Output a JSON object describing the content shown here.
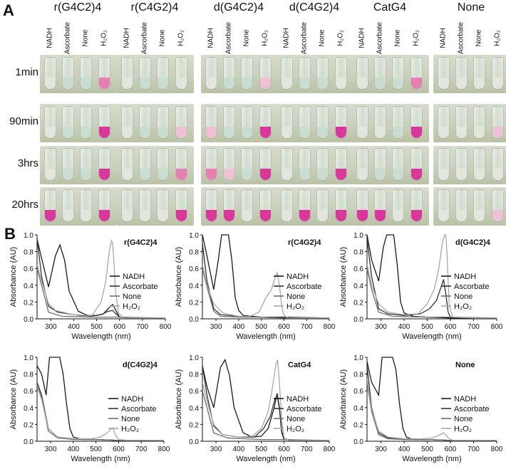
{
  "figure": {
    "panel_a_letter": "A",
    "panel_b_letter": "B",
    "groups": [
      "r(G4C2)4",
      "r(C4G2)4",
      "d(G4C2)4",
      "d(C4G2)4",
      "CatG4",
      "None"
    ],
    "tube_conditions": [
      "NADH",
      "Ascorbate",
      "None",
      "H2O2"
    ],
    "timepoints": [
      "1min",
      "90min",
      "3hrs",
      "20hrs"
    ],
    "tube_colors": {
      "clear": "#e3e6dc",
      "green": "#c9ddd0",
      "pale_pink": "#efc1d4",
      "pink": "#e77fb2",
      "magenta": "#d9379a"
    },
    "tube_states": [
      [
        [
          "clear",
          "green",
          "green",
          "pink"
        ],
        [
          "clear",
          "green",
          "green",
          "magenta"
        ],
        [
          "clear",
          "green",
          "green",
          "magenta"
        ],
        [
          "magenta",
          "clear",
          "clear",
          "magenta"
        ]
      ],
      [
        [
          "clear",
          "green",
          "green",
          "clear"
        ],
        [
          "clear",
          "green",
          "green",
          "pale_pink"
        ],
        [
          "clear",
          "green",
          "green",
          "pink"
        ],
        [
          "clear",
          "clear",
          "clear",
          "magenta"
        ]
      ],
      [
        [
          "clear",
          "green",
          "green",
          "pale_pink"
        ],
        [
          "pale_pink",
          "green",
          "green",
          "magenta"
        ],
        [
          "pink",
          "pale_pink",
          "green",
          "magenta"
        ],
        [
          "magenta",
          "magenta",
          "clear",
          "magenta"
        ]
      ],
      [
        [
          "clear",
          "green",
          "green",
          "clear"
        ],
        [
          "clear",
          "green",
          "green",
          "magenta"
        ],
        [
          "clear",
          "green",
          "green",
          "magenta"
        ],
        [
          "clear",
          "magenta",
          "clear",
          "magenta"
        ]
      ],
      [
        [
          "clear",
          "green",
          "green",
          "pink"
        ],
        [
          "clear",
          "clear",
          "green",
          "magenta"
        ],
        [
          "clear",
          "green",
          "green",
          "magenta"
        ],
        [
          "magenta",
          "magenta",
          "clear",
          "magenta"
        ]
      ],
      [
        [
          "clear",
          "clear",
          "clear",
          "clear"
        ],
        [
          "clear",
          "clear",
          "clear",
          "pale_pink"
        ],
        [
          "clear",
          "clear",
          "clear",
          "clear"
        ],
        [
          "clear",
          "clear",
          "clear",
          "pale_pink"
        ]
      ]
    ],
    "legend": [
      "NADH",
      "Ascorbate",
      "None",
      "H₂O₂"
    ],
    "series_colors": [
      "#1a1a1a",
      "#333333",
      "#6e6e6e",
      "#a8a8a8"
    ],
    "xlabel": "Wavelength (nm)",
    "ylabel": "Absorbance (AU)",
    "xticks": [
      "300",
      "400",
      "500",
      "600",
      "700",
      "800"
    ],
    "yticks": [
      "0.0",
      "0.2",
      "0.4",
      "0.6",
      "0.8",
      "1.0"
    ]
  },
  "chart_data": [
    {
      "type": "line",
      "title": "r(G4C2)4",
      "xlim": [
        240,
        800
      ],
      "ylim": [
        0,
        1.0
      ],
      "series": [
        {
          "name": "NADH",
          "x": [
            240,
            260,
            290,
            320,
            340,
            360,
            380,
            420,
            460,
            500,
            530,
            560,
            570,
            580,
            600,
            650,
            700,
            800
          ],
          "y": [
            0.95,
            0.72,
            0.38,
            0.75,
            0.88,
            0.7,
            0.33,
            0.09,
            0.04,
            0.04,
            0.06,
            0.15,
            0.17,
            0.12,
            0.02,
            0.01,
            0.01,
            0.01
          ]
        },
        {
          "name": "Ascorbate",
          "x": [
            240,
            260,
            290,
            330,
            400,
            470,
            520,
            550,
            570,
            580,
            600,
            700,
            800
          ],
          "y": [
            0.96,
            0.5,
            0.15,
            0.08,
            0.05,
            0.03,
            0.05,
            0.09,
            0.1,
            0.07,
            0.02,
            0.01,
            0.01
          ]
        },
        {
          "name": "None",
          "x": [
            240,
            260,
            290,
            350,
            500,
            600,
            800
          ],
          "y": [
            0.6,
            0.4,
            0.08,
            0.03,
            0.02,
            0.02,
            0.01
          ]
        },
        {
          "name": "H2O2",
          "x": [
            240,
            260,
            290,
            320,
            380,
            440,
            480,
            520,
            540,
            555,
            565,
            570,
            575,
            582,
            595,
            620,
            700,
            800
          ],
          "y": [
            0.65,
            0.45,
            0.18,
            0.1,
            0.06,
            0.03,
            0.04,
            0.2,
            0.45,
            0.8,
            0.93,
            0.9,
            0.7,
            0.35,
            0.07,
            0.01,
            0.01,
            0.01
          ]
        }
      ]
    },
    {
      "type": "line",
      "title": "r(C4G2)4",
      "xlim": [
        240,
        800
      ],
      "ylim": [
        0,
        1.0
      ],
      "series": [
        {
          "name": "NADH",
          "x": [
            240,
            260,
            290,
            310,
            325,
            340,
            355,
            370,
            385,
            400,
            420,
            500,
            600,
            800
          ],
          "y": [
            1.0,
            0.75,
            0.35,
            0.7,
            1.0,
            1.0,
            1.0,
            0.7,
            0.25,
            0.1,
            0.04,
            0.02,
            0.02,
            0.01
          ]
        },
        {
          "name": "Ascorbate",
          "x": [
            240,
            260,
            290,
            320,
            400,
            500,
            600,
            800
          ],
          "y": [
            0.9,
            0.45,
            0.12,
            0.05,
            0.03,
            0.02,
            0.01,
            0.01
          ]
        },
        {
          "name": "None",
          "x": [
            240,
            260,
            290,
            320,
            400,
            500,
            600,
            800
          ],
          "y": [
            0.6,
            0.38,
            0.09,
            0.03,
            0.02,
            0.02,
            0.01,
            0.01
          ]
        },
        {
          "name": "H2O2",
          "x": [
            240,
            260,
            290,
            330,
            400,
            450,
            490,
            520,
            545,
            560,
            570,
            580,
            590,
            600,
            620,
            800
          ],
          "y": [
            0.65,
            0.4,
            0.18,
            0.07,
            0.03,
            0.03,
            0.08,
            0.25,
            0.35,
            0.48,
            0.55,
            0.4,
            0.15,
            0.04,
            0.01,
            0.01
          ]
        }
      ]
    },
    {
      "type": "line",
      "title": "d(G4C2)4",
      "xlim": [
        240,
        800
      ],
      "ylim": [
        0,
        1.0
      ],
      "series": [
        {
          "name": "NADH",
          "x": [
            240,
            260,
            290,
            310,
            325,
            340,
            355,
            370,
            385,
            400,
            440,
            500,
            600,
            800
          ],
          "y": [
            1.0,
            0.7,
            0.45,
            0.85,
            1.0,
            1.0,
            1.0,
            0.65,
            0.2,
            0.07,
            0.03,
            0.02,
            0.01,
            0.01
          ]
        },
        {
          "name": "Ascorbate",
          "x": [
            240,
            260,
            290,
            330,
            400,
            470,
            510,
            540,
            560,
            570,
            580,
            590,
            600,
            700,
            800
          ],
          "y": [
            0.95,
            0.5,
            0.12,
            0.06,
            0.04,
            0.06,
            0.12,
            0.22,
            0.38,
            0.47,
            0.3,
            0.08,
            0.02,
            0.01,
            0.01
          ]
        },
        {
          "name": "None",
          "x": [
            240,
            260,
            290,
            350,
            500,
            600,
            800
          ],
          "y": [
            0.6,
            0.35,
            0.08,
            0.03,
            0.02,
            0.02,
            0.01
          ]
        },
        {
          "name": "H2O2",
          "x": [
            240,
            260,
            290,
            330,
            400,
            460,
            500,
            530,
            550,
            565,
            575,
            580,
            585,
            595,
            610,
            700,
            800
          ],
          "y": [
            0.65,
            0.4,
            0.18,
            0.08,
            0.05,
            0.06,
            0.18,
            0.35,
            0.6,
            0.9,
            1.0,
            1.0,
            0.8,
            0.15,
            0.02,
            0.01,
            0.01
          ]
        }
      ]
    },
    {
      "type": "line",
      "title": "d(C4G2)4",
      "xlim": [
        240,
        800
      ],
      "ylim": [
        0,
        1.0
      ],
      "series": [
        {
          "name": "NADH",
          "x": [
            240,
            260,
            280,
            295,
            310,
            325,
            340,
            355,
            370,
            385,
            400,
            440,
            500,
            600,
            800
          ],
          "y": [
            0.9,
            0.8,
            0.55,
            1.0,
            1.0,
            1.0,
            1.0,
            0.8,
            0.45,
            0.15,
            0.05,
            0.02,
            0.02,
            0.01,
            0.01
          ]
        },
        {
          "name": "Ascorbate",
          "x": [
            240,
            260,
            290,
            330,
            400,
            500,
            600,
            800
          ],
          "y": [
            0.7,
            0.55,
            0.15,
            0.05,
            0.03,
            0.02,
            0.01,
            0.01
          ]
        },
        {
          "name": "None",
          "x": [
            240,
            260,
            290,
            330,
            400,
            500,
            600,
            800
          ],
          "y": [
            0.68,
            0.52,
            0.12,
            0.04,
            0.02,
            0.02,
            0.01,
            0.01
          ]
        },
        {
          "name": "H2O2",
          "x": [
            240,
            260,
            290,
            330,
            400,
            480,
            520,
            550,
            565,
            575,
            585,
            600,
            650,
            800
          ],
          "y": [
            0.65,
            0.5,
            0.15,
            0.05,
            0.03,
            0.03,
            0.05,
            0.1,
            0.14,
            0.16,
            0.08,
            0.02,
            0.01,
            0.01
          ]
        }
      ]
    },
    {
      "type": "line",
      "title": "CatG4",
      "xlim": [
        240,
        800
      ],
      "ylim": [
        0,
        1.0
      ],
      "series": [
        {
          "name": "NADH",
          "x": [
            240,
            260,
            290,
            320,
            340,
            360,
            380,
            420,
            460,
            500,
            530,
            555,
            570,
            580,
            590,
            600,
            700,
            800
          ],
          "y": [
            0.9,
            0.65,
            0.4,
            0.88,
            0.97,
            0.78,
            0.4,
            0.1,
            0.05,
            0.06,
            0.15,
            0.38,
            0.57,
            0.4,
            0.12,
            0.02,
            0.01,
            0.01
          ]
        },
        {
          "name": "Ascorbate",
          "x": [
            240,
            260,
            290,
            330,
            400,
            470,
            510,
            540,
            560,
            570,
            580,
            590,
            600,
            700,
            800
          ],
          "y": [
            0.9,
            0.55,
            0.18,
            0.08,
            0.05,
            0.05,
            0.15,
            0.3,
            0.5,
            0.55,
            0.38,
            0.1,
            0.02,
            0.01,
            0.01
          ]
        },
        {
          "name": "None",
          "x": [
            240,
            260,
            290,
            350,
            500,
            600,
            800
          ],
          "y": [
            0.6,
            0.4,
            0.1,
            0.04,
            0.02,
            0.02,
            0.01
          ]
        },
        {
          "name": "H2O2",
          "x": [
            240,
            260,
            290,
            330,
            400,
            460,
            500,
            530,
            550,
            565,
            572,
            580,
            590,
            600,
            620,
            800
          ],
          "y": [
            0.7,
            0.48,
            0.2,
            0.08,
            0.05,
            0.06,
            0.15,
            0.35,
            0.65,
            0.92,
            0.97,
            0.7,
            0.25,
            0.05,
            0.01,
            0.01
          ]
        }
      ]
    },
    {
      "type": "line",
      "title": "None",
      "xlim": [
        240,
        800
      ],
      "ylim": [
        0,
        1.0
      ],
      "series": [
        {
          "name": "NADH",
          "x": [
            240,
            260,
            290,
            305,
            320,
            335,
            350,
            365,
            380,
            395,
            410,
            440,
            500,
            600,
            800
          ],
          "y": [
            0.95,
            0.7,
            0.55,
            1.0,
            1.0,
            1.0,
            1.0,
            0.85,
            0.45,
            0.15,
            0.05,
            0.02,
            0.02,
            0.01,
            0.01
          ]
        },
        {
          "name": "Ascorbate",
          "x": [
            240,
            260,
            290,
            330,
            400,
            500,
            600,
            800
          ],
          "y": [
            0.9,
            0.4,
            0.1,
            0.04,
            0.02,
            0.02,
            0.01,
            0.01
          ]
        },
        {
          "name": "None",
          "x": [
            240,
            260,
            290,
            330,
            400,
            500,
            600,
            800
          ],
          "y": [
            0.7,
            0.35,
            0.08,
            0.03,
            0.02,
            0.02,
            0.01,
            0.01
          ]
        },
        {
          "name": "H2O2",
          "x": [
            240,
            260,
            290,
            330,
            400,
            480,
            520,
            550,
            570,
            580,
            590,
            610,
            700,
            800
          ],
          "y": [
            0.75,
            0.38,
            0.12,
            0.05,
            0.03,
            0.03,
            0.04,
            0.07,
            0.1,
            0.08,
            0.04,
            0.01,
            0.01,
            0.01
          ]
        }
      ]
    }
  ]
}
